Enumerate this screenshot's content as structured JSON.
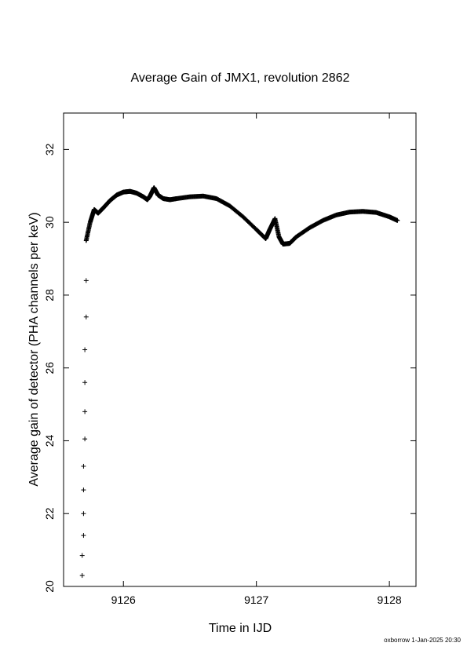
{
  "chart_data": {
    "type": "scatter",
    "title": "Average Gain of JMX1, revolution 2862",
    "xlabel": "Time in IJD",
    "ylabel": "Average gain of detector (PHA channels per keV)",
    "xlim": [
      9125.55,
      9128.2
    ],
    "ylim": [
      20,
      33
    ],
    "xticks": [
      9126,
      9127,
      9128
    ],
    "xtick_labels": [
      "9126",
      "9127",
      "9128"
    ],
    "yticks": [
      20,
      22,
      24,
      26,
      28,
      30,
      32
    ],
    "ytick_labels": [
      "20",
      "22",
      "24",
      "26",
      "28",
      "30",
      "32"
    ],
    "grid": false,
    "legend": "none",
    "marker": "plus",
    "color": "#000000",
    "series": [
      {
        "sparse_points": [
          {
            "x": 9125.69,
            "y": 20.3
          },
          {
            "x": 9125.69,
            "y": 20.85
          },
          {
            "x": 9125.7,
            "y": 21.4
          },
          {
            "x": 9125.7,
            "y": 22.0
          },
          {
            "x": 9125.7,
            "y": 22.65
          },
          {
            "x": 9125.7,
            "y": 23.3
          },
          {
            "x": 9125.71,
            "y": 24.05
          },
          {
            "x": 9125.71,
            "y": 24.8
          },
          {
            "x": 9125.71,
            "y": 25.6
          },
          {
            "x": 9125.71,
            "y": 26.5
          },
          {
            "x": 9125.72,
            "y": 27.4
          },
          {
            "x": 9125.72,
            "y": 28.4
          }
        ],
        "curve": [
          {
            "x": 9125.72,
            "y": 29.5
          },
          {
            "x": 9125.75,
            "y": 30.0
          },
          {
            "x": 9125.78,
            "y": 30.35
          },
          {
            "x": 9125.81,
            "y": 30.25
          },
          {
            "x": 9125.85,
            "y": 30.4
          },
          {
            "x": 9125.9,
            "y": 30.6
          },
          {
            "x": 9125.95,
            "y": 30.75
          },
          {
            "x": 9126.0,
            "y": 30.83
          },
          {
            "x": 9126.05,
            "y": 30.85
          },
          {
            "x": 9126.1,
            "y": 30.8
          },
          {
            "x": 9126.15,
            "y": 30.7
          },
          {
            "x": 9126.18,
            "y": 30.62
          },
          {
            "x": 9126.2,
            "y": 30.72
          },
          {
            "x": 9126.23,
            "y": 30.95
          },
          {
            "x": 9126.26,
            "y": 30.75
          },
          {
            "x": 9126.3,
            "y": 30.65
          },
          {
            "x": 9126.35,
            "y": 30.62
          },
          {
            "x": 9126.4,
            "y": 30.65
          },
          {
            "x": 9126.5,
            "y": 30.7
          },
          {
            "x": 9126.6,
            "y": 30.72
          },
          {
            "x": 9126.7,
            "y": 30.65
          },
          {
            "x": 9126.8,
            "y": 30.45
          },
          {
            "x": 9126.9,
            "y": 30.15
          },
          {
            "x": 9127.0,
            "y": 29.8
          },
          {
            "x": 9127.07,
            "y": 29.55
          },
          {
            "x": 9127.1,
            "y": 29.8
          },
          {
            "x": 9127.14,
            "y": 30.1
          },
          {
            "x": 9127.17,
            "y": 29.6
          },
          {
            "x": 9127.2,
            "y": 29.4
          },
          {
            "x": 9127.25,
            "y": 29.42
          },
          {
            "x": 9127.3,
            "y": 29.6
          },
          {
            "x": 9127.4,
            "y": 29.85
          },
          {
            "x": 9127.5,
            "y": 30.05
          },
          {
            "x": 9127.6,
            "y": 30.2
          },
          {
            "x": 9127.7,
            "y": 30.28
          },
          {
            "x": 9127.8,
            "y": 30.3
          },
          {
            "x": 9127.9,
            "y": 30.27
          },
          {
            "x": 9128.0,
            "y": 30.15
          },
          {
            "x": 9128.06,
            "y": 30.05
          }
        ]
      }
    ]
  },
  "footer": {
    "text": "oxborrow  1-Jan-2025 20:30"
  }
}
